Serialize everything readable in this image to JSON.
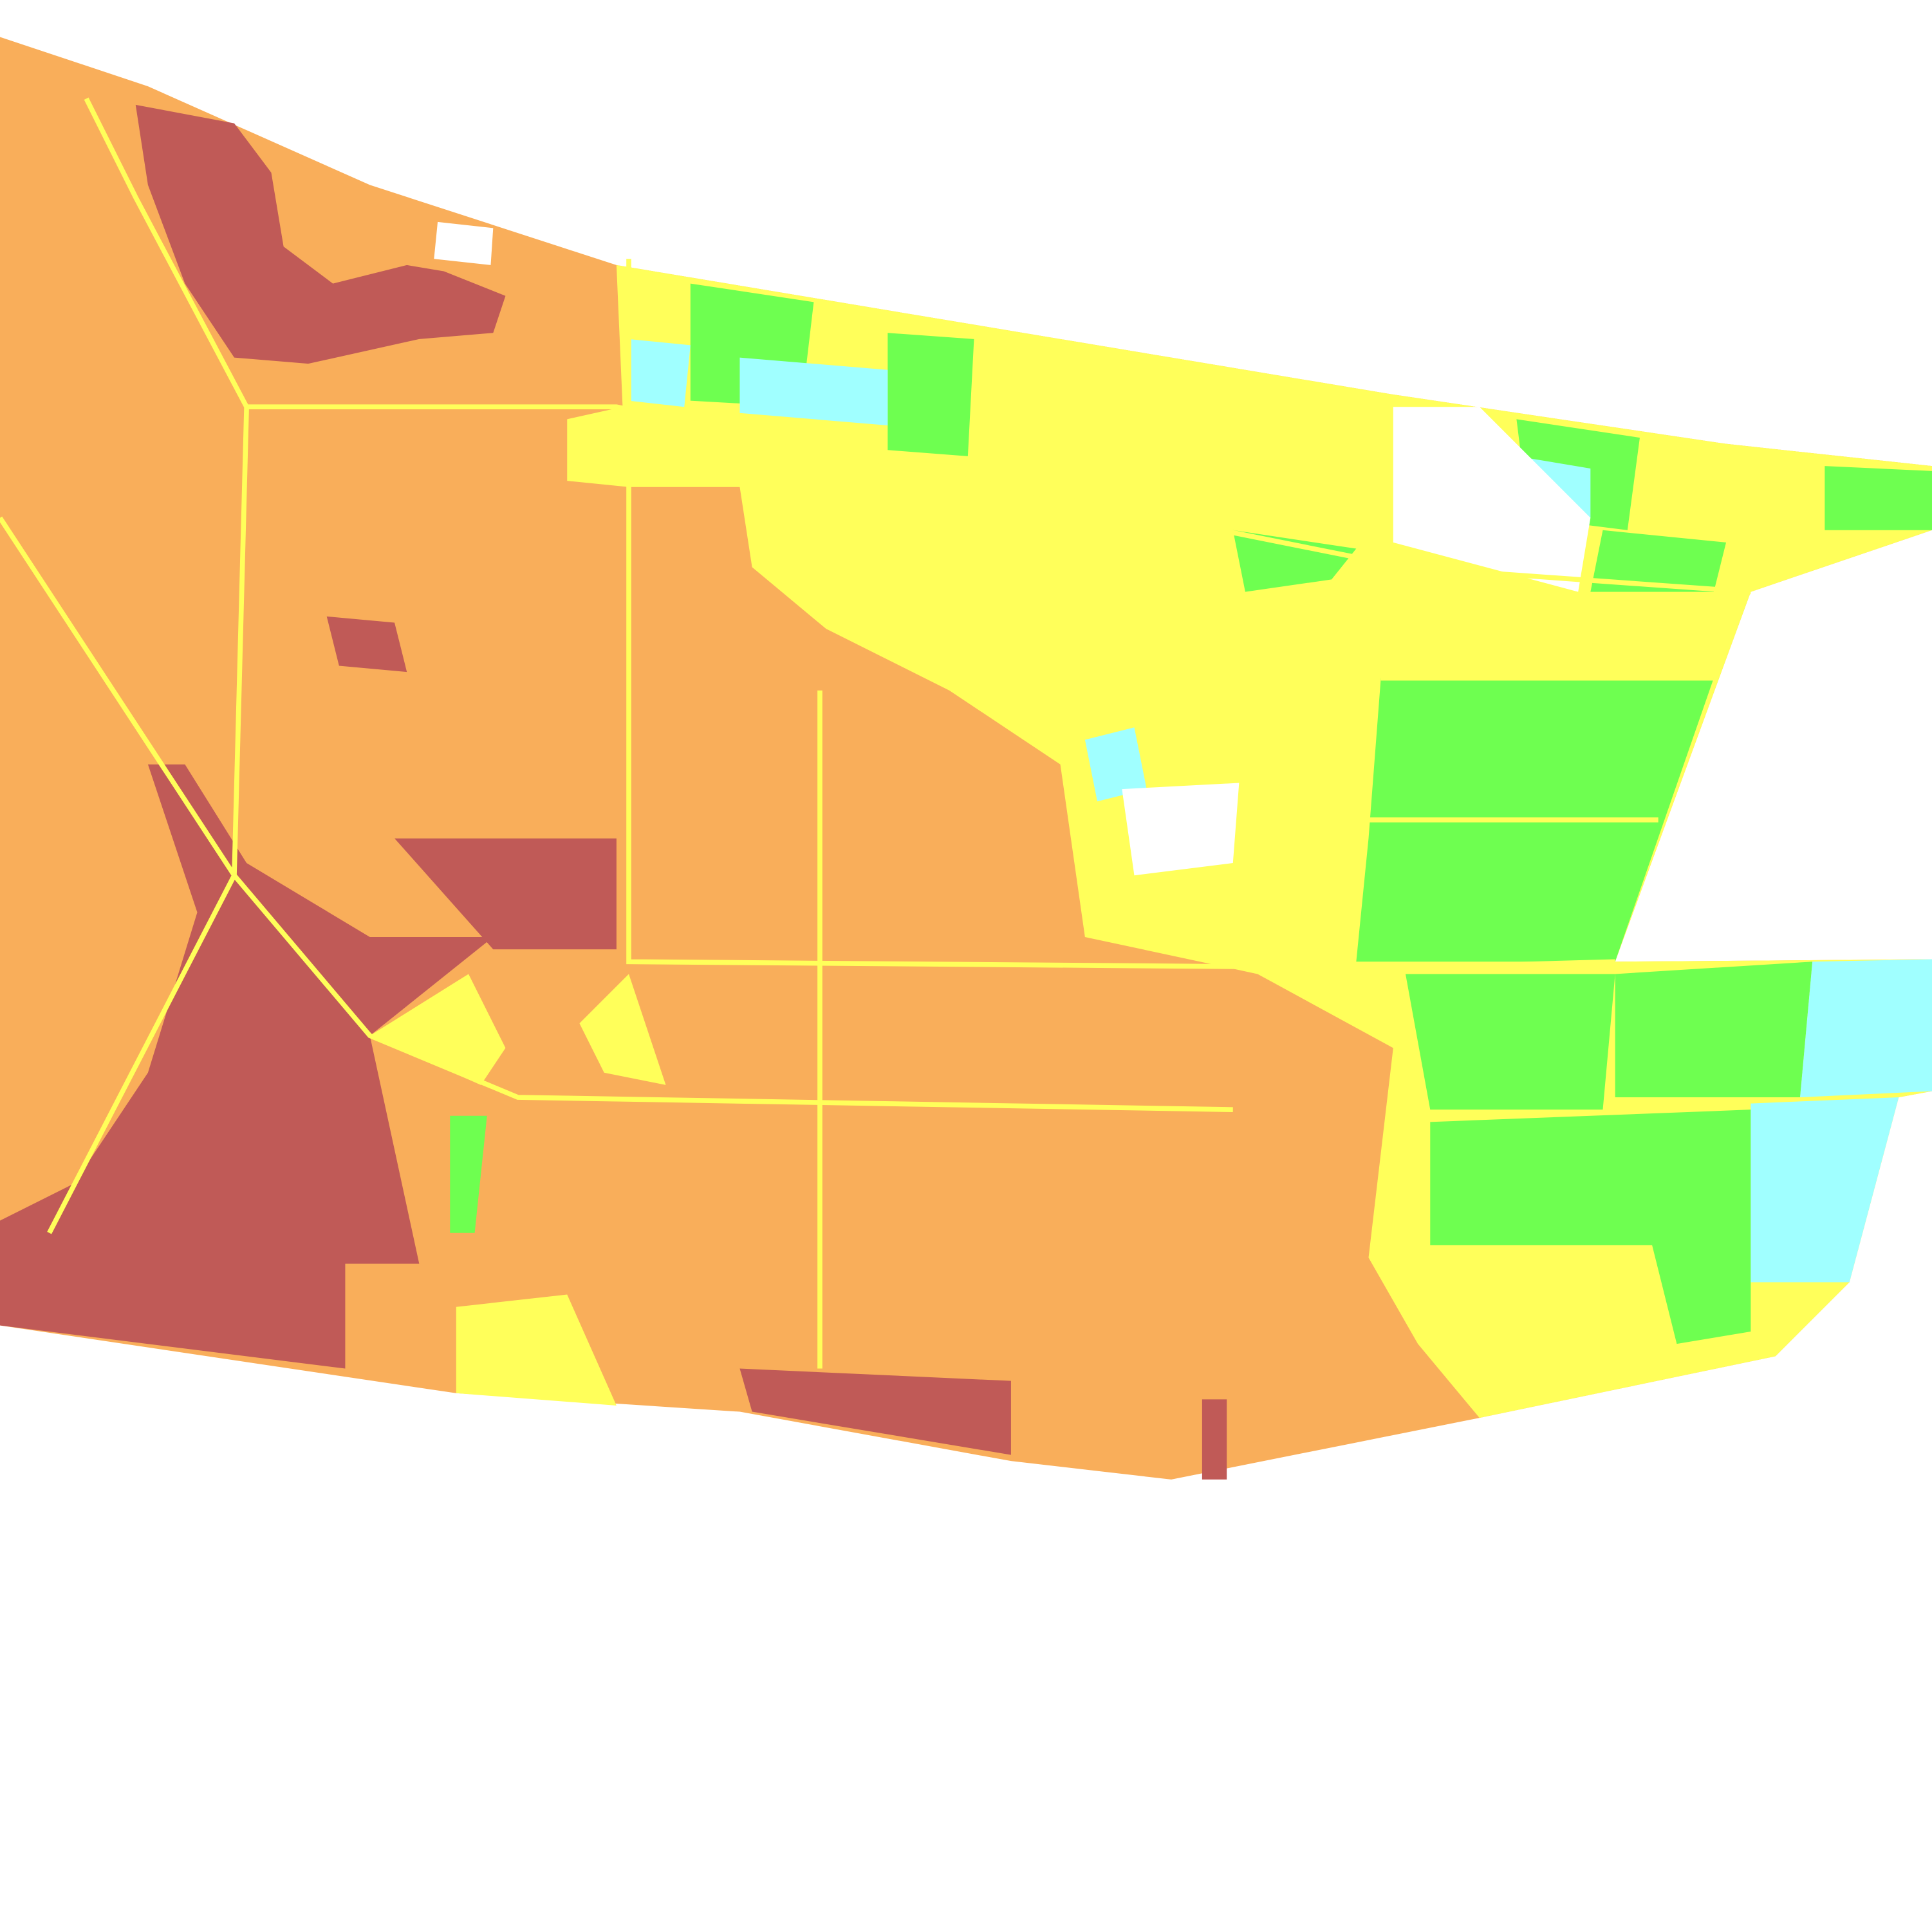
{
  "map": {
    "type": "classified-raster",
    "background": "#ffffff",
    "palette": {
      "class_dark_red": "#c05a57",
      "class_orange": "#f9ae5a",
      "class_yellow": "#ffff5a",
      "class_green": "#6eff50",
      "class_cyan": "#a0ffff",
      "nodata": "#ffffff"
    }
  }
}
